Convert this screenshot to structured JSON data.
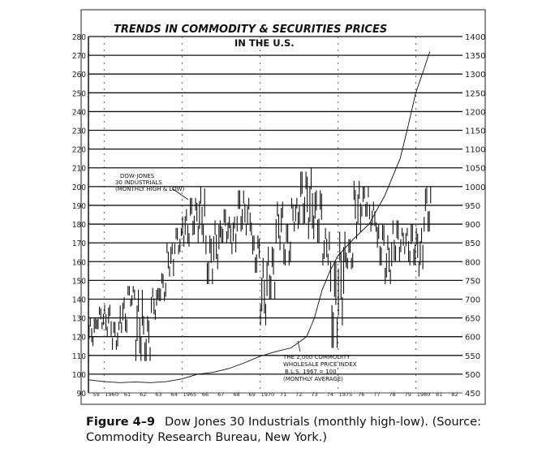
{
  "chart_data": {
    "type": "line",
    "title": "TRENDS IN COMMODITY & SECURITIES PRICES",
    "subtitle": "IN THE U.S.",
    "x_tick_labels": [
      "59",
      "1960",
      "61",
      "62",
      "63",
      "64",
      "1965",
      "66",
      "67",
      "68",
      "69",
      "1970",
      "71",
      "72",
      "73",
      "74",
      "1975",
      "76",
      "77",
      "78",
      "79",
      "1980",
      "81",
      "82"
    ],
    "xlim": [
      1959,
      1983
    ],
    "left_axis": {
      "ylim": [
        90,
        280
      ],
      "ticks": [
        90,
        100,
        110,
        120,
        130,
        140,
        150,
        160,
        170,
        180,
        190,
        200,
        210,
        220,
        230,
        240,
        250,
        260,
        270,
        280
      ]
    },
    "right_axis": {
      "ylim": [
        450,
        1400
      ],
      "ticks": [
        450,
        500,
        550,
        600,
        650,
        700,
        750,
        800,
        850,
        900,
        950,
        1000,
        1050,
        1100,
        1150,
        1200,
        1250,
        1300,
        1350,
        1400
      ]
    },
    "grid": true,
    "series": [
      {
        "name": "DOW-JONES 30 INDUSTRIALS (MONTHLY HIGH & LOW)",
        "axis": "right",
        "style": "high-low bars",
        "x": [
          1959.0,
          1959.5,
          1960.0,
          1960.5,
          1961.0,
          1961.5,
          1962.0,
          1962.5,
          1963.0,
          1963.5,
          1964.0,
          1964.5,
          1965.0,
          1965.5,
          1966.0,
          1966.5,
          1967.0,
          1967.5,
          1968.0,
          1968.5,
          1969.0,
          1969.5,
          1970.0,
          1970.5,
          1971.0,
          1971.5,
          1972.0,
          1972.5,
          1973.0,
          1973.5,
          1974.0,
          1974.5,
          1975.0,
          1975.5,
          1976.0,
          1976.5,
          1977.0,
          1977.5,
          1978.0,
          1978.5,
          1979.0,
          1979.5,
          1980.0,
          1980.5
        ],
        "low": [
          575,
          620,
          600,
          565,
          610,
          680,
          535,
          535,
          645,
          695,
          760,
          820,
          840,
          870,
          850,
          740,
          780,
          850,
          820,
          880,
          870,
          770,
          630,
          700,
          830,
          790,
          880,
          900,
          860,
          850,
          790,
          570,
          630,
          780,
          860,
          920,
          880,
          790,
          740,
          800,
          820,
          790,
          760,
          880
        ],
        "high": [
          650,
          680,
          685,
          640,
          705,
          735,
          725,
          655,
          730,
          770,
          850,
          890,
          940,
          970,
          1000,
          870,
          910,
          940,
          920,
          990,
          970,
          870,
          810,
          840,
          960,
          900,
          970,
          1040,
          1050,
          990,
          890,
          800,
          880,
          860,
          1015,
          1000,
          960,
          900,
          870,
          910,
          890,
          900,
          890,
          1000
        ]
      },
      {
        "name": "THE 2,000 COMMODITY WHOLESALE PRICE INDEX B.L.S. 1967 = 100 (MONTHLY AVERAGE)",
        "axis": "left",
        "style": "line",
        "x": [
          1959.0,
          1960.0,
          1961.0,
          1962.0,
          1963.0,
          1964.0,
          1965.0,
          1966.0,
          1967.0,
          1968.0,
          1969.0,
          1970.0,
          1971.0,
          1972.0,
          1973.0,
          1973.5,
          1974.0,
          1974.5,
          1975.0,
          1976.0,
          1977.0,
          1978.0,
          1979.0,
          1979.5,
          1980.0,
          1980.5,
          1980.9
        ],
        "values": [
          97,
          96,
          95.5,
          95.8,
          95.5,
          96,
          97.5,
          100,
          101,
          103,
          106,
          109.5,
          112,
          114,
          120,
          130,
          145,
          155,
          163,
          172,
          180,
          195,
          215,
          232,
          250,
          262,
          272
        ]
      }
    ],
    "annotations": {
      "dow_label": [
        "DOW-JONES",
        "30 INDUSTRIALS",
        "(MONTHLY HIGH & LOW)"
      ],
      "index_label": [
        "THE 2,000 COMMODITY",
        "WHOLESALE PRICE INDEX",
        "B.L.S. 1967 = 100",
        "(MONTHLY AVERAGE)"
      ]
    }
  },
  "caption": {
    "figure": "Figure 4–9",
    "text": "Dow Jones 30 Industrials (monthly high-low). (Source: Commodity Research Bureau, New York.)"
  }
}
